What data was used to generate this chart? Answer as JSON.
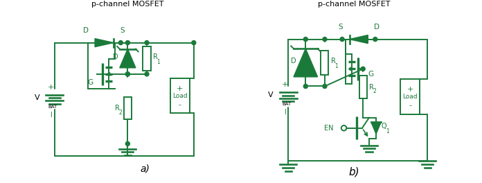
{
  "color": "#1a7a3a",
  "bg_color": "#ffffff",
  "lw": 1.4,
  "dot_r": 0.012,
  "title_a": "p-channel MOSFET",
  "title_b": "p-channel MOSFET",
  "label_a": "a)",
  "label_b": "b)"
}
